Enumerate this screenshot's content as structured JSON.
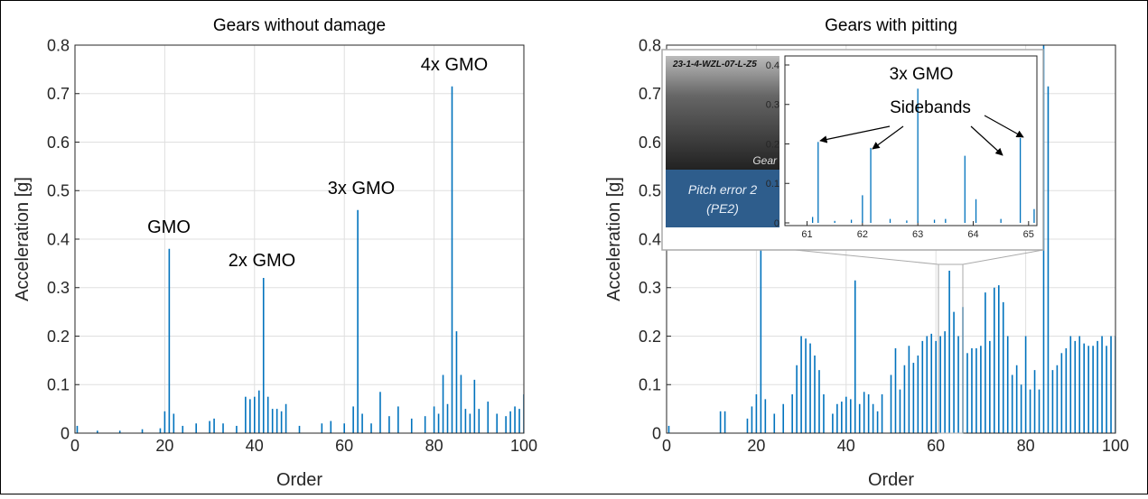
{
  "chart_data": [
    {
      "type": "stem",
      "title": "Gears without damage",
      "xlabel": "Order",
      "ylabel": "Acceleration [g]",
      "color": "#0072bd",
      "grid": true,
      "xlim": [
        0,
        100
      ],
      "ylim": [
        0,
        0.8
      ],
      "xticks": [
        0,
        20,
        40,
        60,
        80,
        100
      ],
      "yticks": [
        0,
        0.1,
        0.2,
        0.3,
        0.4,
        0.5,
        0.6,
        0.7,
        0.8
      ],
      "annotations": [
        "GMO",
        "2x GMO",
        "3x GMO",
        "4x GMO"
      ],
      "x": [
        0.5,
        5,
        10,
        15,
        19,
        20,
        21,
        22,
        24,
        27,
        30,
        31,
        33,
        36,
        38,
        39,
        40,
        41,
        42,
        43,
        44,
        45,
        46,
        47,
        50,
        55,
        57,
        60,
        62,
        63,
        64,
        66,
        68,
        70,
        72,
        75,
        78,
        80,
        81,
        82,
        83,
        84,
        85,
        86,
        87,
        88,
        89,
        90,
        92,
        94,
        96,
        97,
        98,
        99,
        100
      ],
      "values": [
        0.015,
        0.005,
        0.005,
        0.008,
        0.01,
        0.045,
        0.38,
        0.04,
        0.015,
        0.02,
        0.025,
        0.03,
        0.02,
        0.015,
        0.075,
        0.07,
        0.075,
        0.088,
        0.32,
        0.075,
        0.05,
        0.05,
        0.045,
        0.06,
        0.015,
        0.02,
        0.025,
        0.02,
        0.055,
        0.46,
        0.04,
        0.02,
        0.085,
        0.035,
        0.055,
        0.03,
        0.035,
        0.055,
        0.04,
        0.12,
        0.06,
        0.715,
        0.21,
        0.12,
        0.05,
        0.04,
        0.11,
        0.05,
        0.065,
        0.04,
        0.035,
        0.045,
        0.055,
        0.05,
        0.08
      ]
    },
    {
      "type": "stem",
      "title": "Gears with pitting",
      "xlabel": "Order",
      "ylabel": "Acceleration [g]",
      "color": "#0072bd",
      "grid": true,
      "xlim": [
        0,
        100
      ],
      "ylim": [
        0,
        0.8
      ],
      "xticks": [
        0,
        20,
        40,
        60,
        80,
        100
      ],
      "yticks": [
        0,
        0.1,
        0.2,
        0.3,
        0.4,
        0.5,
        0.6,
        0.7,
        0.8
      ],
      "x": [
        0.5,
        12,
        13,
        18,
        19,
        20,
        21,
        22,
        24,
        26,
        28,
        29,
        30,
        31,
        32,
        33,
        34,
        35,
        37,
        38,
        39,
        40,
        41,
        42,
        43,
        44,
        45,
        46,
        47,
        48,
        50,
        51,
        52,
        53,
        54,
        55,
        56,
        57,
        58,
        59,
        60,
        61,
        62,
        63,
        64,
        65,
        66,
        67,
        68,
        69,
        70,
        71,
        72,
        73,
        74,
        75,
        76,
        77,
        78,
        79,
        80,
        81,
        82,
        83,
        84,
        85,
        86,
        87,
        88,
        89,
        90,
        91,
        92,
        93,
        94,
        95,
        96,
        97,
        98,
        99,
        100
      ],
      "values": [
        0.015,
        0.045,
        0.045,
        0.03,
        0.055,
        0.08,
        0.6,
        0.07,
        0.04,
        0.06,
        0.08,
        0.14,
        0.2,
        0.195,
        0.185,
        0.16,
        0.13,
        0.08,
        0.04,
        0.06,
        0.065,
        0.075,
        0.07,
        0.315,
        0.06,
        0.085,
        0.08,
        0.06,
        0.045,
        0.08,
        0.12,
        0.175,
        0.09,
        0.14,
        0.18,
        0.145,
        0.16,
        0.19,
        0.2,
        0.205,
        0.19,
        0.2,
        0.21,
        0.335,
        0.25,
        0.2,
        0.26,
        0.165,
        0.175,
        0.175,
        0.18,
        0.29,
        0.19,
        0.3,
        0.305,
        0.27,
        0.2,
        0.12,
        0.14,
        0.1,
        0.2,
        0.09,
        0.13,
        0.09,
        0.8,
        0.715,
        0.13,
        0.14,
        0.165,
        0.175,
        0.2,
        0.19,
        0.2,
        0.185,
        0.18,
        0.18,
        0.19,
        0.2,
        0.18,
        0.2,
        0.2
      ]
    },
    {
      "type": "stem",
      "color": "#0072bd",
      "grid": false,
      "xlim": [
        60.6,
        65.15
      ],
      "ylim": [
        0,
        0.4
      ],
      "xticks": [
        61,
        62,
        63,
        64,
        65
      ],
      "yticks": [
        0,
        0.1,
        0.2,
        0.3,
        0.4
      ],
      "annotations": [
        "3x GMO",
        "Sidebands"
      ],
      "x": [
        61.1,
        61.2,
        61.5,
        61.8,
        62,
        62.15,
        62.5,
        62.8,
        63,
        63.3,
        63.5,
        63.85,
        64.05,
        64.5,
        64.85,
        65.1
      ],
      "values": [
        0.015,
        0.205,
        0.005,
        0.008,
        0.07,
        0.19,
        0.01,
        0.006,
        0.34,
        0.008,
        0.01,
        0.17,
        0.06,
        0.01,
        0.215,
        0.035
      ]
    }
  ],
  "photo": {
    "caption": "23-1-4-WZL-07-L-Z5",
    "part": "Gear",
    "label": [
      "Pitch error 2",
      "(PE2)"
    ]
  }
}
